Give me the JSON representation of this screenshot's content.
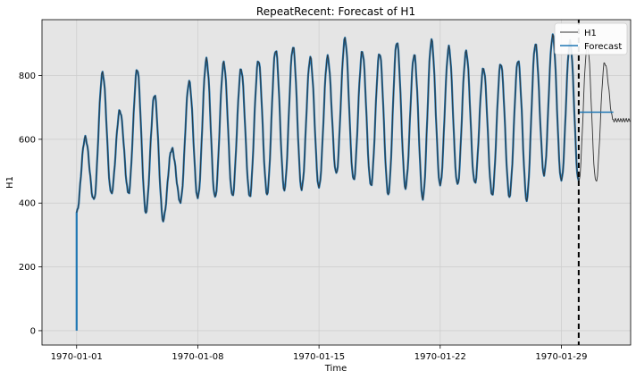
{
  "chart_data": {
    "type": "line",
    "title": "RepeatRecent: Forecast of H1",
    "xlabel": "Time",
    "ylabel": "H1",
    "x_domain": [
      "1969-12-30",
      "1970-02-02"
    ],
    "ylim": [
      -45,
      975
    ],
    "x_ticks": [
      "1970-01-01",
      "1970-01-08",
      "1970-01-15",
      "1970-01-22",
      "1970-01-29"
    ],
    "y_ticks": [
      0,
      200,
      400,
      600,
      800
    ],
    "grid": true,
    "legend_position": "top-right",
    "forecast_start": "1970-01-30",
    "series": [
      {
        "name": "H1",
        "color": "#333333",
        "daily_minmax": [
          [
            "1970-01-01",
            605,
            370
          ],
          [
            "1970-01-02",
            808,
            408
          ],
          [
            "1970-01-03",
            690,
            428
          ],
          [
            "1970-01-04",
            820,
            430
          ],
          [
            "1970-01-05",
            740,
            372
          ],
          [
            "1970-01-06",
            570,
            348
          ],
          [
            "1970-01-07",
            780,
            405
          ],
          [
            "1970-01-08",
            850,
            415
          ],
          [
            "1970-01-09",
            840,
            415
          ],
          [
            "1970-01-10",
            820,
            420
          ],
          [
            "1970-01-11",
            848,
            420
          ],
          [
            "1970-01-12",
            880,
            430
          ],
          [
            "1970-01-13",
            888,
            445
          ],
          [
            "1970-01-14",
            855,
            445
          ],
          [
            "1970-01-15",
            858,
            448
          ],
          [
            "1970-01-16",
            915,
            490
          ],
          [
            "1970-01-17",
            875,
            470
          ],
          [
            "1970-01-18",
            870,
            455
          ],
          [
            "1970-01-19",
            905,
            430
          ],
          [
            "1970-01-20",
            865,
            450
          ],
          [
            "1970-01-21",
            910,
            415
          ],
          [
            "1970-01-22",
            888,
            455
          ],
          [
            "1970-01-23",
            875,
            455
          ],
          [
            "1970-01-24",
            822,
            460
          ],
          [
            "1970-01-25",
            838,
            425
          ],
          [
            "1970-01-26",
            848,
            422
          ],
          [
            "1970-01-27",
            898,
            412
          ],
          [
            "1970-01-28",
            925,
            490
          ],
          [
            "1970-01-29",
            905,
            470
          ],
          [
            "1970-01-30",
            895,
            465
          ],
          [
            "1970-01-31",
            840,
            465
          ],
          [
            "1970-02-01",
            660,
            660
          ]
        ]
      },
      {
        "name": "Forecast",
        "color": "#1f77b4",
        "fitted_follows": "H1",
        "initial_point": [
          "1970-01-01",
          0
        ],
        "flat_forecast": {
          "start": "1970-01-30",
          "end": "1970-02-01",
          "value": 685
        }
      }
    ]
  }
}
